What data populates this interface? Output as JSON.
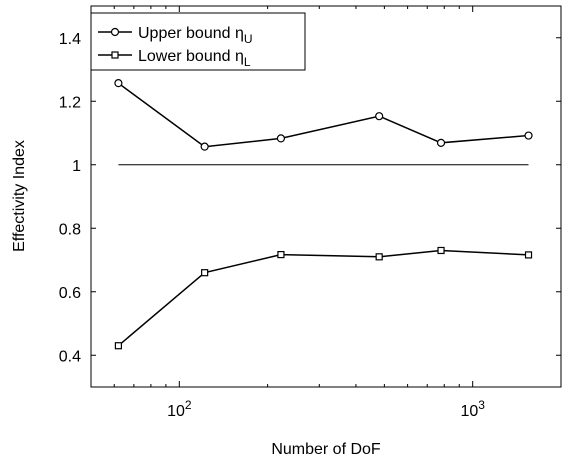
{
  "chart_data": {
    "type": "line",
    "xscale": "log",
    "xlim": [
      50,
      2000
    ],
    "ylim": [
      0.3,
      1.5
    ],
    "grid": false,
    "legend_position": "top-left",
    "xlabel": "Number of DoF",
    "ylabel": "Effectivity Index",
    "x_ticks": [
      {
        "base": "10",
        "exp": "2",
        "value": 100
      },
      {
        "base": "10",
        "exp": "3",
        "value": 1000
      }
    ],
    "y_ticks": [
      {
        "value": 0.4,
        "label": "0.4"
      },
      {
        "value": 0.6,
        "label": "0.6"
      },
      {
        "value": 0.8,
        "label": "0.8"
      },
      {
        "value": 1.0,
        "label": "1"
      },
      {
        "value": 1.2,
        "label": "1.2"
      },
      {
        "value": 1.4,
        "label": "1.4"
      }
    ],
    "reference_line": {
      "y": 1.0,
      "x_range": [
        62,
        1550
      ]
    },
    "series": [
      {
        "legend_text": "Upper bound η",
        "legend_sub": "U",
        "marker": "circle",
        "x": [
          62,
          122,
          222,
          480,
          780,
          1550
        ],
        "y": [
          1.257,
          1.057,
          1.083,
          1.153,
          1.069,
          1.092
        ]
      },
      {
        "legend_text": "Lower bound η",
        "legend_sub": "L",
        "marker": "square",
        "x": [
          62,
          122,
          222,
          480,
          780,
          1550
        ],
        "y": [
          0.43,
          0.66,
          0.717,
          0.71,
          0.73,
          0.716
        ]
      }
    ]
  }
}
